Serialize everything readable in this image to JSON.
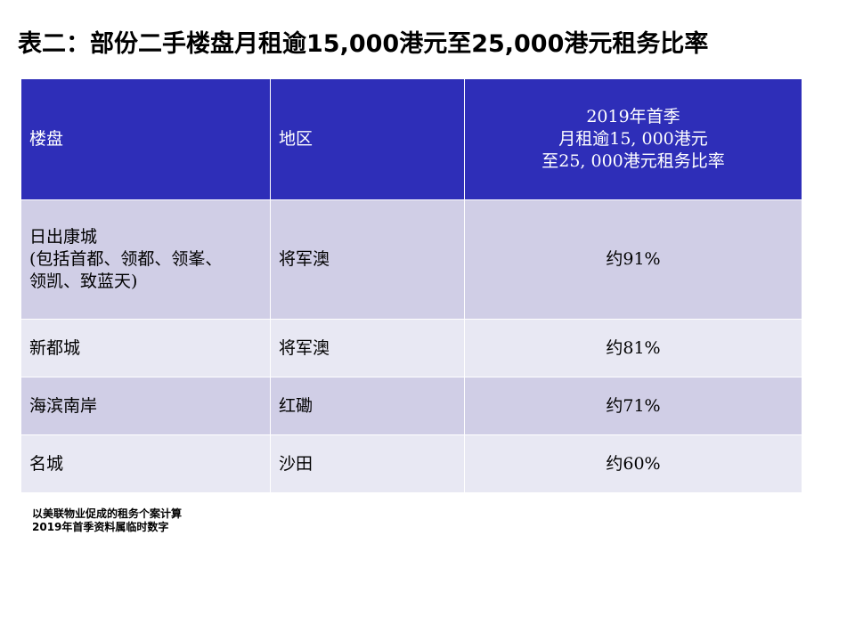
{
  "title": "表二：部份二手楼盘月租逾15,000港元至25,000港元租务比率",
  "table": {
    "headers": {
      "estate": "楼盘",
      "district": "地区",
      "ratio_lines": [
        "2019年首季",
        "月租逾15, 000港元",
        "至25, 000港元租务比率"
      ]
    },
    "rows": [
      {
        "estate_lines": [
          "日出康城",
          "(包括首都、领都、领峯、",
          "领凯、致蓝天)"
        ],
        "district": "将军澳",
        "ratio": "约91%"
      },
      {
        "estate_lines": [
          "新都城"
        ],
        "district": "将军澳",
        "ratio": "约81%"
      },
      {
        "estate_lines": [
          "海滨南岸"
        ],
        "district": "红磡",
        "ratio": "约71%"
      },
      {
        "estate_lines": [
          "名城"
        ],
        "district": "沙田",
        "ratio": "约60%"
      }
    ]
  },
  "footnotes": [
    "以美联物业促成的租务个案计算",
    "2019年首季资料属临时数字"
  ],
  "colors": {
    "header_bg": "#2e2eb8",
    "row_odd_bg": "#d0cee6",
    "row_even_bg": "#e8e8f3"
  }
}
